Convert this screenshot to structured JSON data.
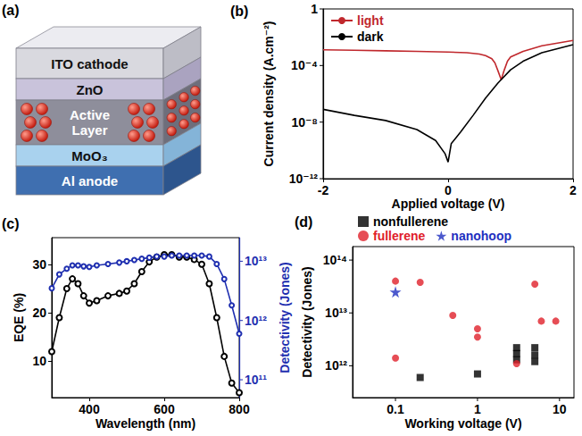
{
  "diagram": {
    "panel": "(a)",
    "layers": [
      "ITO cathode",
      "ZnO",
      "Active Layer",
      "MoO₃",
      "Al anode"
    ]
  },
  "chart_data": [
    {
      "panel": "(b)",
      "type": "line",
      "xlabel": "Applied voltage (V)",
      "ylabel": "Current density (A.cm⁻²)",
      "xlim": [
        -2,
        2
      ],
      "xticks": [
        -2,
        0,
        2
      ],
      "ylim": [
        1e-12,
        1
      ],
      "yticks": [
        {
          "value": 1e-12,
          "label": "10⁻¹²"
        },
        {
          "value": 1e-08,
          "label": "10⁻⁸"
        },
        {
          "value": 0.0001,
          "label": "10⁻⁴"
        },
        1
      ],
      "log": "y",
      "grid": false,
      "legend": "upper left",
      "series": [
        {
          "name": "light",
          "color": "#c0282d",
          "marker": "none",
          "line_style": "solid",
          "x": [
            -2,
            -1.5,
            -1,
            -0.5,
            0,
            0.3,
            0.5,
            0.6,
            0.7,
            0.75,
            0.8,
            0.85,
            0.9,
            0.95,
            1,
            1.2,
            1.5,
            2
          ],
          "values": [
            0.0013,
            0.0012,
            0.0011,
            0.001,
            0.0009,
            0.0008,
            0.00065,
            0.0005,
            0.0003,
            0.00015,
            4e-05,
            1e-05,
            5e-05,
            0.0002,
            0.0004,
            0.001,
            0.0025,
            0.006
          ]
        },
        {
          "name": "dark",
          "color": "#000000",
          "marker": "none",
          "line_style": "solid",
          "x": [
            -2,
            -1.5,
            -1,
            -0.5,
            -0.2,
            -0.05,
            0,
            0.05,
            0.2,
            0.4,
            0.6,
            0.8,
            1,
            1.2,
            1.5,
            2
          ],
          "values": [
            8e-08,
            3e-08,
            1.3e-08,
            3e-09,
            5e-10,
            6e-11,
            1.5e-11,
            3e-10,
            2e-09,
            3e-08,
            5e-07,
            6e-06,
            5e-05,
            0.0002,
            0.0008,
            0.003
          ]
        }
      ]
    },
    {
      "panel": "(c)",
      "type": "line",
      "xlabel": "Wavelength (nm)",
      "ylabel": "EQE (%)",
      "y2label": "Detectivity (Jones)",
      "xlim": [
        300,
        800
      ],
      "xticks": [
        400,
        600,
        800
      ],
      "ylim": [
        2.5,
        35.5
      ],
      "yticks": [
        10,
        20,
        30
      ],
      "y2lim": [
        50000000000.0,
        25000000000000.0
      ],
      "y2ticks": [
        {
          "value": 100000000000.0,
          "label": "10¹¹"
        },
        {
          "value": 1000000000000.0,
          "label": "10¹²"
        },
        {
          "value": 10000000000000.0,
          "label": "10¹³"
        }
      ],
      "log": "y2",
      "grid": false,
      "x": [
        300,
        320,
        340,
        355,
        370,
        385,
        400,
        420,
        450,
        480,
        500,
        520,
        540,
        560,
        580,
        600,
        620,
        640,
        660,
        680,
        700,
        720,
        740,
        760,
        780,
        800
      ],
      "series": [
        {
          "color": "#000000",
          "marker": "open_circle",
          "line_style": "solid",
          "values": [
            12,
            19,
            25,
            27,
            26,
            23.5,
            22,
            22.5,
            23.5,
            24,
            24.5,
            26,
            28.5,
            30.5,
            31.5,
            32,
            32,
            31.5,
            31.5,
            31,
            30,
            26,
            19,
            11,
            5.5,
            3.5
          ]
        },
        {
          "color": "#1f2fb0",
          "marker": "open_circle",
          "line_style": "solid",
          "axis": "y2",
          "values": [
            3500000000000.0,
            6000000000000.0,
            7500000000000.0,
            8500000000000.0,
            8500000000000.0,
            8200000000000.0,
            8000000000000.0,
            8500000000000.0,
            9000000000000.0,
            9500000000000.0,
            10000000000000.0,
            10500000000000.0,
            11000000000000.0,
            11500000000000.0,
            12000000000000.0,
            12000000000000.0,
            12500000000000.0,
            12500000000000.0,
            12500000000000.0,
            12500000000000.0,
            12500000000000.0,
            12000000000000.0,
            9000000000000.0,
            5000000000000.0,
            1800000000000.0,
            600000000000.0
          ]
        }
      ]
    },
    {
      "panel": "(d)",
      "type": "scatter",
      "xlabel": "Working voltage (V)",
      "ylabel": "Detectivity (Jones)",
      "xlim": [
        0.03,
        15
      ],
      "xticks": [
        0.1,
        1,
        10
      ],
      "ylim": [
        250000000000.0,
        180000000000000.0
      ],
      "yticks": [
        {
          "value": 1000000000000.0,
          "label": "10¹²"
        },
        {
          "value": 10000000000000.0,
          "label": "10¹³"
        },
        {
          "value": 100000000000000.0,
          "label": "10¹⁴"
        }
      ],
      "log": true,
      "grid": false,
      "legend": "top",
      "series": [
        {
          "name": "nonfullerene",
          "color": "#000000",
          "marker": "square",
          "x": [
            0.2,
            1,
            3,
            3,
            3,
            5,
            5,
            5
          ],
          "values": [
            600000000000.0,
            700000000000.0,
            2200000000000.0,
            1700000000000.0,
            1300000000000.0,
            2200000000000.0,
            1600000000000.0,
            1200000000000.0
          ]
        },
        {
          "name": "fullerene",
          "color": "#e0202a",
          "marker": "circle",
          "x": [
            0.1,
            0.1,
            0.2,
            0.5,
            1,
            1,
            3,
            5,
            6,
            9
          ],
          "values": [
            40000000000000.0,
            1400000000000.0,
            38000000000000.0,
            9000000000000.0,
            5000000000000.0,
            3500000000000.0,
            1100000000000.0,
            35000000000000.0,
            7000000000000.0,
            7000000000000.0
          ]
        },
        {
          "name": "nanohoop",
          "color": "#1f2fc0",
          "marker": "star",
          "x": [
            0.1
          ],
          "values": [
            25000000000000.0
          ]
        }
      ]
    }
  ]
}
